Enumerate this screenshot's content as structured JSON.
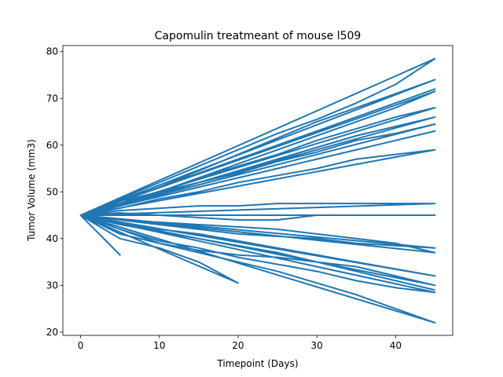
{
  "chart_data": {
    "type": "line",
    "title": "Capomulin treatmeant of mouse l509",
    "xlabel": "Timepoint (Days)",
    "ylabel": "Tumor Volume (mm3)",
    "color": "#1f77b4",
    "xlim": [
      -2.25,
      47.25
    ],
    "xticks": [
      0,
      10,
      20,
      30,
      40
    ],
    "ylim": [
      19.3,
      81.3
    ],
    "yticks": [
      20,
      30,
      40,
      50,
      60,
      70,
      80
    ],
    "x": [
      0,
      5,
      10,
      15,
      20,
      25,
      30,
      35,
      40,
      45,
      0,
      5,
      10,
      15,
      20,
      25,
      30,
      35,
      40,
      45,
      0,
      5,
      10,
      15,
      20,
      25,
      30,
      35,
      40,
      45,
      0,
      5,
      10,
      15,
      20,
      25,
      30,
      35,
      40,
      45,
      0,
      5,
      10,
      15,
      20,
      25,
      30,
      35,
      40,
      45,
      0,
      5,
      10,
      15,
      20,
      25,
      30,
      35,
      40,
      45,
      0,
      5,
      10,
      15,
      20,
      25,
      30,
      35,
      40,
      45,
      0,
      5,
      10,
      15,
      20,
      25,
      30,
      35,
      40,
      45,
      0,
      5,
      10,
      15,
      20,
      25,
      30,
      35,
      40,
      45,
      0,
      5,
      10,
      15,
      20,
      25,
      30,
      35,
      40,
      45,
      0,
      5,
      10,
      15,
      20,
      25,
      30,
      35,
      40,
      45,
      0,
      5,
      10,
      15,
      20,
      25,
      30,
      35,
      40,
      45,
      0,
      5,
      10,
      15,
      20,
      25,
      30,
      35,
      40,
      45,
      0,
      5,
      0,
      5,
      10,
      15,
      20,
      0,
      5,
      10,
      15,
      20,
      25,
      30,
      35,
      40,
      45,
      0,
      5,
      10,
      15,
      20,
      25,
      30,
      35,
      40,
      45,
      0,
      5,
      10,
      15,
      20,
      25,
      30,
      35,
      40,
      45,
      0,
      5,
      10,
      15,
      20,
      25,
      30,
      35,
      40,
      45,
      0,
      5,
      10,
      15,
      20,
      25,
      30,
      35,
      40,
      45
    ],
    "values": [
      45,
      48,
      51,
      54,
      57,
      60,
      63,
      66,
      69,
      72,
      45,
      47.5,
      50,
      53,
      55.5,
      58,
      61,
      63.5,
      66,
      68,
      45,
      48.5,
      52,
      55.5,
      59,
      62.5,
      65.5,
      69,
      73,
      78.5,
      45,
      46.5,
      48.5,
      50,
      52,
      53.5,
      55,
      57,
      58,
      59,
      45,
      47,
      49.5,
      52,
      54.5,
      57,
      59.5,
      62,
      64,
      66,
      45,
      48,
      50,
      53,
      56,
      59,
      62,
      65,
      68,
      71.5,
      45,
      47,
      49,
      51,
      53,
      55,
      57,
      59,
      61,
      63,
      45,
      43,
      41.5,
      40,
      38.5,
      37,
      35,
      34,
      32,
      30,
      45,
      42,
      39,
      37,
      35,
      33,
      30.5,
      28,
      25,
      22,
      45,
      44,
      43,
      42,
      41,
      40.5,
      40,
      39,
      38.5,
      38,
      45,
      46,
      46.5,
      47,
      47,
      47.5,
      47.5,
      47.5,
      47.5,
      47.5,
      45,
      43.5,
      42,
      41,
      39.5,
      38,
      36.5,
      35,
      33.5,
      32,
      45,
      44,
      43.5,
      43,
      42.5,
      42,
      41,
      40,
      39,
      37,
      45,
      36.5,
      45,
      40,
      38,
      35,
      30.5,
      45,
      45.5,
      45,
      44.5,
      44,
      44,
      45,
      45,
      45,
      45,
      45,
      48,
      51,
      54.5,
      58,
      61.5,
      65,
      68,
      71,
      74,
      45,
      47,
      50,
      52,
      54,
      56.5,
      58.5,
      61,
      62.5,
      64.5,
      45,
      42,
      39.5,
      38,
      36,
      34.5,
      33,
      31,
      29.5,
      28.5,
      45,
      41,
      39,
      37.5,
      36.5,
      36,
      35,
      33,
      31,
      29
    ]
  }
}
